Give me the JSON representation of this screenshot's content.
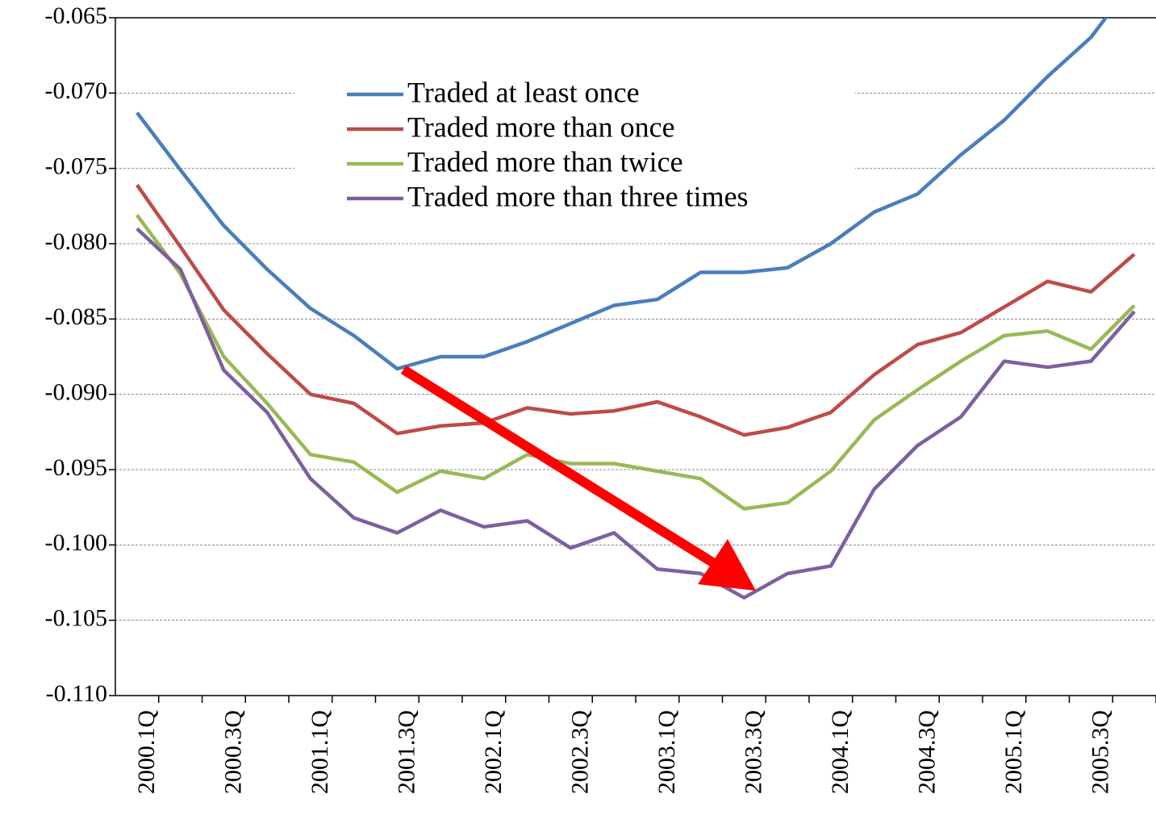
{
  "chart_data": {
    "type": "line",
    "categories": [
      "2000.1Q",
      null,
      "2000.3Q",
      null,
      "2001.1Q",
      null,
      "2001.3Q",
      null,
      "2002.1Q",
      null,
      "2002.3Q",
      null,
      "2003.1Q",
      null,
      "2003.3Q",
      null,
      "2004.1Q",
      null,
      "2004.3Q",
      null,
      "2005.1Q",
      null,
      "2005.3Q",
      null
    ],
    "series": [
      {
        "name": "Traded at least once",
        "color": "#4a7ebb",
        "values": [
          -0.0713,
          -0.0751,
          -0.0788,
          -0.0817,
          -0.0843,
          -0.0861,
          -0.0883,
          -0.0875,
          -0.0875,
          -0.0865,
          -0.0853,
          -0.0841,
          -0.0837,
          -0.0819,
          -0.0819,
          -0.0816,
          -0.08,
          -0.0779,
          -0.0767,
          -0.0741,
          -0.0718,
          -0.0689,
          -0.0663,
          -0.0625
        ]
      },
      {
        "name": "Traded more than once",
        "color": "#be4b48",
        "values": [
          -0.0761,
          -0.0802,
          -0.0844,
          -0.0873,
          -0.09,
          -0.0906,
          -0.0926,
          -0.0921,
          -0.0919,
          -0.0909,
          -0.0913,
          -0.0911,
          -0.0905,
          -0.0915,
          -0.0927,
          -0.0922,
          -0.0912,
          -0.0887,
          -0.0867,
          -0.0859,
          -0.0842,
          -0.0825,
          -0.0832,
          -0.0807
        ]
      },
      {
        "name": "Traded more than twice",
        "color": "#98b954",
        "values": [
          -0.0781,
          -0.082,
          -0.0875,
          -0.0906,
          -0.094,
          -0.0945,
          -0.0965,
          -0.0951,
          -0.0956,
          -0.094,
          -0.0946,
          -0.0946,
          -0.0951,
          -0.0956,
          -0.0976,
          -0.0972,
          -0.0951,
          -0.0917,
          -0.0897,
          -0.0878,
          -0.0861,
          -0.0858,
          -0.087,
          -0.0841
        ]
      },
      {
        "name": "Traded more than three times",
        "color": "#7d60a0",
        "values": [
          -0.079,
          -0.0817,
          -0.0884,
          -0.0912,
          -0.0956,
          -0.0982,
          -0.0992,
          -0.0977,
          -0.0988,
          -0.0984,
          -0.1002,
          -0.0992,
          -0.1016,
          -0.1019,
          -0.1035,
          -0.1019,
          -0.1014,
          -0.0963,
          -0.0934,
          -0.0915,
          -0.0878,
          -0.0882,
          -0.0878,
          -0.0845
        ]
      }
    ],
    "ylim": [
      -0.11,
      -0.065
    ],
    "yticks": [
      {
        "value": -0.11,
        "label": "-0.110"
      },
      -0.105,
      {
        "value": -0.1,
        "label": "-0.100"
      },
      -0.095,
      {
        "value": -0.09,
        "label": "-0.090"
      },
      -0.085,
      {
        "value": -0.08,
        "label": "-0.080"
      },
      -0.075,
      {
        "value": -0.07,
        "label": "-0.070"
      },
      -0.065
    ],
    "grid": true
  }
}
